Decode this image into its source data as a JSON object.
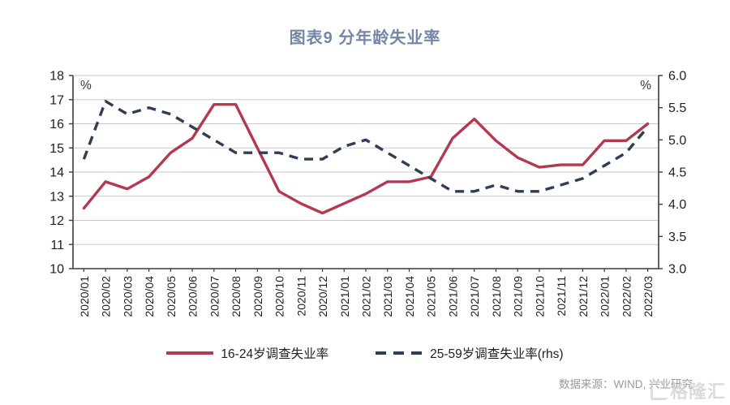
{
  "title": "图表9 分年龄失业率",
  "chart_data": {
    "type": "line",
    "categories": [
      "2020/01",
      "2020/02",
      "2020/03",
      "2020/04",
      "2020/05",
      "2020/06",
      "2020/07",
      "2020/08",
      "2020/09",
      "2020/10",
      "2020/11",
      "2020/12",
      "2021/01",
      "2021/02",
      "2021/03",
      "2021/04",
      "2021/05",
      "2021/06",
      "2021/07",
      "2021/08",
      "2021/09",
      "2021/10",
      "2021/11",
      "2021/12",
      "2022/01",
      "2022/02",
      "2022/03"
    ],
    "series": [
      {
        "name": "16-24岁调查失业率",
        "axis": "left",
        "style": "solid",
        "color": "#b13a50",
        "values": [
          12.5,
          13.6,
          13.3,
          13.8,
          14.8,
          15.4,
          16.8,
          16.8,
          15.0,
          13.2,
          12.7,
          12.3,
          12.7,
          13.1,
          13.6,
          13.6,
          13.8,
          15.4,
          16.2,
          15.3,
          14.6,
          14.2,
          14.3,
          14.3,
          15.3,
          15.3,
          16.0
        ]
      },
      {
        "name": "25-59岁调查失业率(rhs)",
        "axis": "right",
        "style": "dashed",
        "color": "#2e3e54",
        "values": [
          4.7,
          5.6,
          5.4,
          5.5,
          5.4,
          5.2,
          5.0,
          4.8,
          4.8,
          4.8,
          4.7,
          4.7,
          4.9,
          5.0,
          4.8,
          4.6,
          4.4,
          4.2,
          4.2,
          4.3,
          4.2,
          4.2,
          4.3,
          4.4,
          4.6,
          4.8,
          5.2
        ]
      }
    ],
    "left_axis": {
      "min": 10,
      "max": 18,
      "unit": "%",
      "ticks": [
        "18",
        "17",
        "16",
        "15",
        "14",
        "13",
        "12",
        "11",
        "10"
      ]
    },
    "right_axis": {
      "min": 3.0,
      "max": 6.0,
      "unit": "%",
      "ticks": [
        "6.0",
        "5.5",
        "5.0",
        "4.5",
        "4.0",
        "3.5",
        "3.0"
      ]
    },
    "grid": true,
    "legend_position": "bottom"
  },
  "legend": {
    "item1": "16-24岁调查失业率",
    "item2": "25-59岁调查失业率(rhs)"
  },
  "source": {
    "text": "数据来源：WIND, 兴业研究"
  },
  "watermark": {
    "text": "格隆汇"
  },
  "colors": {
    "accent_red": "#b13a50",
    "accent_navy": "#2e3e54",
    "title": "#7486a8",
    "grid": "#c9c9c9",
    "axis": "#3c3c3c",
    "text": "#1f1f1f",
    "percent": "#333333",
    "source_text": "#9b9b9b",
    "watermark": "#cfcfcf"
  }
}
